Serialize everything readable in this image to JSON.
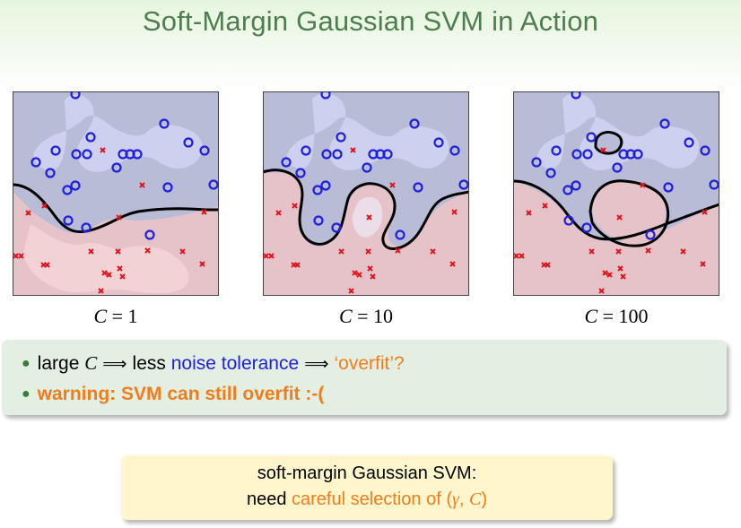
{
  "title": "Soft-Margin Gaussian SVM in Action",
  "panels": [
    {
      "var": "C",
      "eq": " = ",
      "value": "1"
    },
    {
      "var": "C",
      "eq": " = ",
      "value": "10"
    },
    {
      "var": "C",
      "eq": " = ",
      "value": "100"
    }
  ],
  "bullets": {
    "b1": {
      "p1": "large ",
      "c": "C",
      "arrow": " ⟹ ",
      "p2": "less ",
      "noise": "noise tolerance",
      "arrow2": " ⟹ ",
      "overfit": "‘overfit’?"
    },
    "b2": "warning: SVM can still overfit :-("
  },
  "note": {
    "line1": "soft-margin Gaussian SVM:",
    "need": "need ",
    "careful": "careful selection of (",
    "gamma": "γ",
    "comma": ", ",
    "c": "C",
    "close": ")"
  },
  "colors": {
    "title": "#4f7d4f",
    "positive_point": "#1f1fdc",
    "negative_point": "#e0141c",
    "region_blue": "#b7bdd8",
    "region_red": "#e7c0c5",
    "accent_orange": "#f07d1c"
  }
}
